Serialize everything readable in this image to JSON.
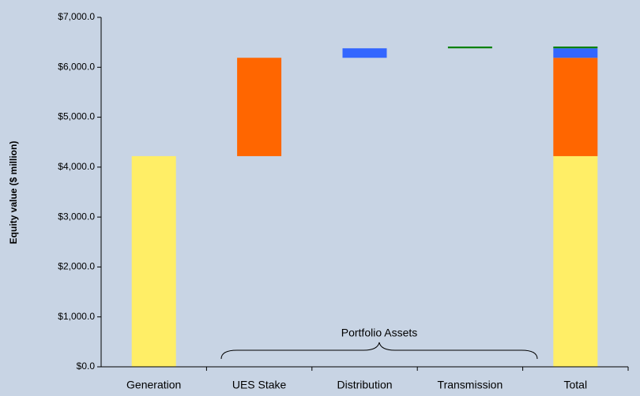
{
  "chart_data": {
    "type": "waterfall",
    "y_label": "Equity value ($ million)",
    "annotation": "Portfolio Assets",
    "categories": [
      "Generation",
      "UES Stake",
      "Distribution",
      "Transmission",
      "Total"
    ],
    "values": [
      4220,
      1970,
      190,
      35,
      null
    ],
    "colors": [
      "#ffee66",
      "#ff6600",
      "#3366ff",
      "#008000",
      null
    ],
    "ylim": [
      0,
      7000
    ],
    "yticks": [
      {
        "value": 0,
        "label": "$0.0"
      },
      {
        "value": 1000,
        "label": "$1,000.0"
      },
      {
        "value": 2000,
        "label": "$2,000.0"
      },
      {
        "value": 3000,
        "label": "$3,000.0"
      },
      {
        "value": 4000,
        "label": "$4,000.0"
      },
      {
        "value": 5000,
        "label": "$5,000.0"
      },
      {
        "value": 6000,
        "label": "$6,000.0"
      },
      {
        "value": 7000,
        "label": "$7,000.0"
      }
    ],
    "grid": false
  }
}
